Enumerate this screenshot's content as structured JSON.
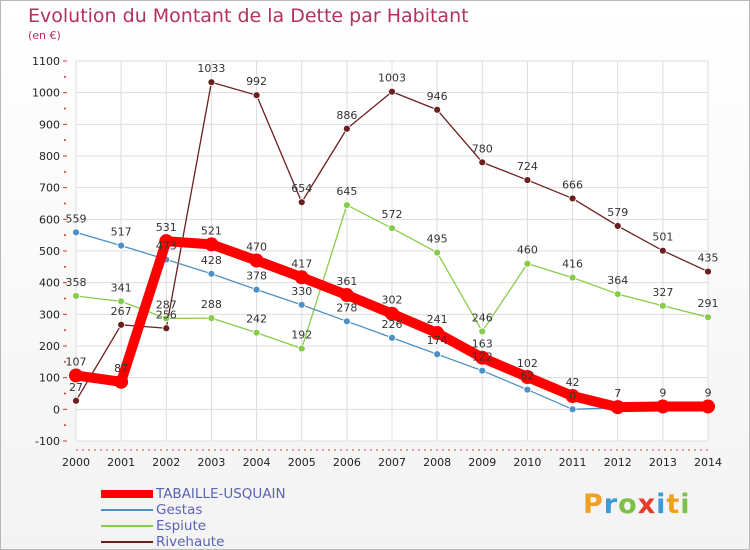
{
  "title": "Evolution du Montant de la Dette par Habitant",
  "subtitle": "(en €)",
  "brand": {
    "letters": [
      "P",
      "r",
      "o",
      "x",
      "i",
      "t",
      "i"
    ],
    "colors": [
      "#f0a020",
      "#3c9ad6",
      "#7cc04a",
      "#e33a2a",
      "#3c9ad6",
      "#f0a020",
      "#7cc04a"
    ]
  },
  "chart_data": {
    "type": "line",
    "x": [
      2000,
      2001,
      2002,
      2003,
      2004,
      2005,
      2006,
      2007,
      2008,
      2009,
      2010,
      2011,
      2012,
      2013,
      2014
    ],
    "ylim": [
      -100,
      1100
    ],
    "yticks": [
      -100,
      0,
      100,
      200,
      300,
      400,
      500,
      600,
      700,
      800,
      900,
      1000,
      1100
    ],
    "grid": true,
    "legend_position": "bottom-left",
    "series": [
      {
        "name": "TABAILLE-USQUAIN",
        "color": "#ff0000",
        "values": [
          107,
          87,
          531,
          521,
          470,
          417,
          361,
          302,
          241,
          163,
          102,
          42,
          7,
          9,
          9
        ],
        "labels": [
          "107",
          "87",
          "531",
          "521",
          "470",
          "417",
          "361",
          "302",
          "241",
          "163",
          "102",
          "42",
          "7",
          "9",
          "9"
        ]
      },
      {
        "name": "Gestas",
        "color": "#4d90c6",
        "values": [
          559,
          517,
          473,
          428,
          378,
          330,
          278,
          226,
          174,
          122,
          62,
          0,
          5,
          5,
          5
        ],
        "labels": [
          "559",
          "517",
          "473",
          "428",
          "378",
          "330",
          "278",
          "226",
          "174",
          "122",
          "62",
          "0",
          "",
          "",
          ""
        ]
      },
      {
        "name": "Espiute",
        "color": "#88cc4b",
        "values": [
          358,
          341,
          287,
          288,
          242,
          192,
          645,
          572,
          495,
          246,
          460,
          416,
          364,
          327,
          291
        ],
        "labels": [
          "358",
          "341",
          "287",
          "288",
          "242",
          "192",
          "645",
          "572",
          "495",
          "246",
          "460",
          "416",
          "364",
          "327",
          "291"
        ]
      },
      {
        "name": "Rivehaute",
        "color": "#6b1f1f",
        "values": [
          27,
          267,
          256,
          1033,
          992,
          654,
          886,
          1003,
          946,
          780,
          724,
          666,
          579,
          501,
          435
        ],
        "labels": [
          "27",
          "267",
          "256",
          "1033",
          "992",
          "654",
          "886",
          "1003",
          "946",
          "780",
          "724",
          "666",
          "579",
          "501",
          "435"
        ]
      }
    ]
  }
}
